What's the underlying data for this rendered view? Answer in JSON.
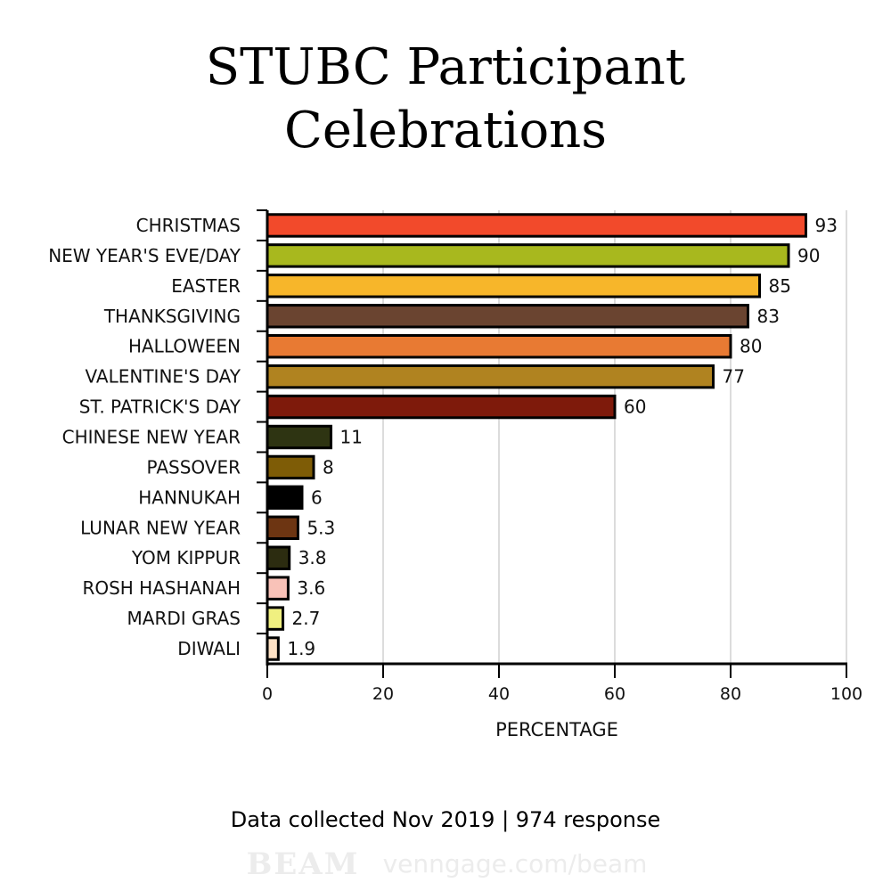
{
  "chart_data": {
    "type": "bar",
    "orientation": "horizontal",
    "title_lines": [
      "STUBC Participant",
      "Celebrations"
    ],
    "xlabel": "PERCENTAGE",
    "ylabel": "",
    "xlim": [
      0,
      100
    ],
    "x_ticks": [
      0,
      20,
      40,
      60,
      80,
      100
    ],
    "grid": "vertical",
    "categories": [
      "CHRISTMAS",
      "NEW YEAR'S EVE/DAY",
      "EASTER",
      "THANKSGIVING",
      "HALLOWEEN",
      "VALENTINE'S DAY",
      "ST. PATRICK'S DAY",
      "CHINESE NEW YEAR",
      "PASSOVER",
      "HANNUKAH",
      "LUNAR NEW YEAR",
      "YOM KIPPUR",
      "ROSH HASHANAH",
      "MARDI GRAS",
      "DIWALI"
    ],
    "values": [
      93,
      90,
      85,
      83,
      80,
      77,
      60,
      11,
      8,
      6,
      5.3,
      3.8,
      3.6,
      2.7,
      1.9
    ],
    "value_labels": [
      "93",
      "90",
      "85",
      "83",
      "80",
      "77",
      "60",
      "11",
      "8",
      "6",
      "5.3",
      "3.8",
      "3.6",
      "2.7",
      "1.9"
    ],
    "colors": [
      "#f24a2b",
      "#a8b81e",
      "#f7b62a",
      "#6a4430",
      "#e87a33",
      "#b08320",
      "#7e1a0b",
      "#2e3412",
      "#7e5c06",
      "#000000",
      "#6d3512",
      "#2c2c10",
      "#f9c2b8",
      "#f0f080",
      "#fde1c4"
    ],
    "footnote": "Data collected Nov 2019 | 974 response"
  },
  "watermark": {
    "logo": "BEAM",
    "url": "venngage.com/beam"
  }
}
